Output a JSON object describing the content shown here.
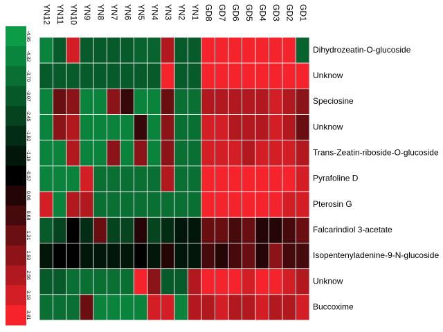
{
  "chart_data": {
    "type": "heatmap",
    "x": [
      "YN12",
      "YN11",
      "YN10",
      "YN9",
      "YN8",
      "YN7",
      "YN6",
      "YN5",
      "YN4",
      "YN3",
      "YN2",
      "YN1",
      "GD8",
      "GD7",
      "GD6",
      "GD5",
      "GD4",
      "GD3",
      "GD2",
      "GD1"
    ],
    "y": [
      "Dihydrozeatin-O-glucoside",
      "Unknow",
      "Speciosine",
      "Unknow",
      "Trans-Zeatin-riboside-O-glucoside",
      "Pyrafoline D",
      "Pterosin G",
      "Falcarindiol 3-acetate",
      "Isopentenyladenine-9-N-glucoside",
      "Unknow",
      "Buccoxime"
    ],
    "values": [
      [
        -4.3,
        -3.1,
        3.2,
        -3.1,
        -3.1,
        -3.1,
        -3.1,
        -3.4,
        -3.4,
        2.6,
        -3.1,
        -3.1,
        3.8,
        3.8,
        3.8,
        3.8,
        3.8,
        3.8,
        3.8,
        -3.4
      ],
      [
        -3.1,
        -3.1,
        -3.1,
        -3.1,
        -3.1,
        -3.1,
        -3.1,
        -3.1,
        -3.1,
        3.8,
        -3.1,
        -3.1,
        3.8,
        3.8,
        3.8,
        3.8,
        3.8,
        3.8,
        3.8,
        3.8
      ],
      [
        -4.3,
        1.3,
        1.9,
        -4.3,
        -4.3,
        1.9,
        0.4,
        -4.3,
        -4.3,
        1.3,
        -3.7,
        -3.7,
        2.6,
        2.6,
        2.6,
        2.6,
        2.6,
        3.2,
        2.6,
        1.9
      ],
      [
        -4.3,
        1.9,
        2.6,
        -4.3,
        -4.3,
        -4.3,
        -4.3,
        0.4,
        -4.3,
        1.9,
        -3.7,
        -3.7,
        3.2,
        3.2,
        2.6,
        2.6,
        2.6,
        3.2,
        2.6,
        1.3
      ],
      [
        -4.3,
        -4.3,
        2.6,
        -4.3,
        -4.3,
        1.9,
        -4.3,
        1.9,
        -4.3,
        1.9,
        -3.7,
        -3.7,
        3.2,
        3.2,
        3.2,
        2.6,
        3.2,
        3.2,
        3.2,
        2.6
      ],
      [
        -4.3,
        -4.3,
        -4.3,
        3.2,
        -3.7,
        -3.7,
        -3.7,
        -3.7,
        -3.7,
        2.6,
        -3.7,
        -3.7,
        3.8,
        3.8,
        3.8,
        3.8,
        3.8,
        3.8,
        3.8,
        3.2
      ],
      [
        3.2,
        -4.3,
        2.6,
        2.6,
        -3.7,
        -3.7,
        -3.7,
        -3.7,
        -3.7,
        -3.7,
        -3.7,
        -3.7,
        3.8,
        3.8,
        3.8,
        3.8,
        3.8,
        3.8,
        3.2,
        3.2
      ],
      [
        -3.1,
        -2.5,
        -0.6,
        -1.8,
        1.3,
        -2.5,
        -2.5,
        0.1,
        -2.5,
        -1.8,
        -1.2,
        -1.2,
        1.3,
        1.3,
        0.7,
        1.3,
        0.1,
        0.1,
        0.7,
        1.3
      ],
      [
        -1.2,
        -0.6,
        -0.6,
        -1.2,
        -1.2,
        -1.2,
        -1.2,
        -0.6,
        -1.2,
        0.1,
        -1.2,
        -1.2,
        0.7,
        0.1,
        0.7,
        1.3,
        0.1,
        1.9,
        0.7,
        0.7
      ],
      [
        -3.1,
        -3.1,
        -3.7,
        -3.7,
        -3.7,
        -3.7,
        -3.7,
        3.8,
        1.9,
        -3.1,
        -3.1,
        2.6,
        3.8,
        3.8,
        3.8,
        3.2,
        3.8,
        3.8,
        3.2,
        2.6
      ],
      [
        -3.7,
        -3.7,
        -3.7,
        1.3,
        -4.3,
        -4.3,
        -4.3,
        -4.3,
        3.2,
        3.2,
        -4.3,
        2.6,
        2.6,
        3.2,
        2.6,
        2.6,
        3.2,
        2.6,
        2.6,
        3.2
      ]
    ],
    "zlim": [
      -4.95,
      3.81
    ],
    "zticks": [
      -4.95,
      -4.32,
      {
        "value": -3.7,
        "label": "-3.70"
      },
      -3.07,
      -2.45,
      -1.82,
      -1.19,
      -0.57,
      0.06,
      0.68,
      1.31,
      1.93,
      2.56,
      3.18,
      3.81
    ],
    "colors": {
      "low": "#0c9b47",
      "mid": "#000000",
      "high": "#f6232b"
    }
  }
}
